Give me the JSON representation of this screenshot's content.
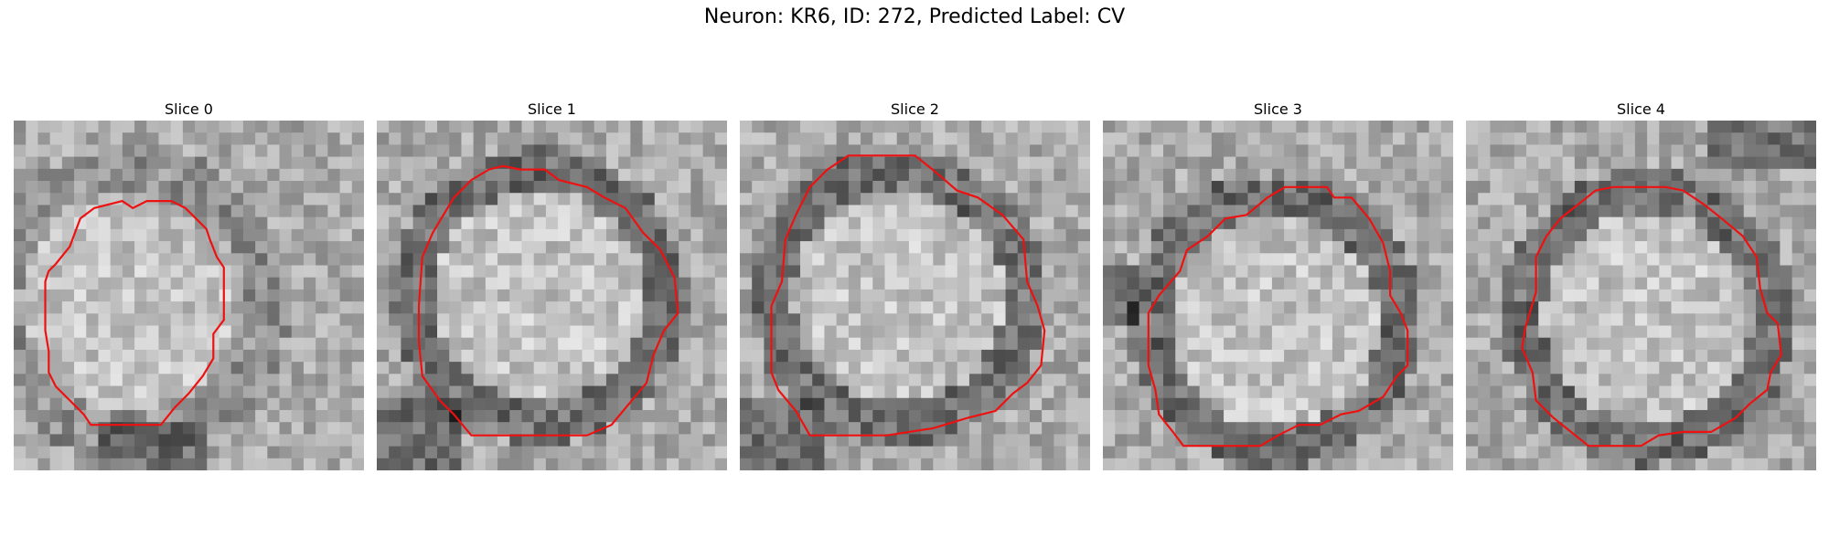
{
  "figure": {
    "title": "Neuron: KR6, ID: 272, Predicted Label: CV",
    "contour_color": "#ee1111",
    "colormap": "grayscale"
  },
  "slices": [
    {
      "title": "Slice 0",
      "seed": 11,
      "dark_ring": false,
      "dark_corner": "bottom-center",
      "contour": [
        [
          45,
          21
        ],
        [
          44,
          21
        ],
        [
          43,
          22
        ],
        [
          42,
          22
        ],
        [
          41,
          23
        ],
        [
          40,
          23
        ],
        [
          38,
          24
        ],
        [
          37,
          24
        ],
        [
          36,
          25
        ],
        [
          35,
          26
        ],
        [
          34,
          28
        ],
        [
          34,
          30
        ],
        [
          35,
          32
        ],
        [
          36,
          34
        ],
        [
          36,
          36
        ],
        [
          35,
          38
        ],
        [
          34,
          40
        ],
        [
          34,
          42
        ],
        [
          33,
          44
        ],
        [
          33,
          46
        ],
        [
          32,
          47
        ],
        [
          31,
          48
        ],
        [
          30,
          49
        ],
        [
          29,
          50
        ],
        [
          28,
          51
        ],
        [
          26,
          51
        ],
        [
          24,
          51
        ],
        [
          22,
          51
        ],
        [
          20,
          51
        ],
        [
          18,
          51
        ],
        [
          17,
          50
        ],
        [
          16,
          49
        ],
        [
          15,
          48
        ],
        [
          14,
          47
        ],
        [
          13,
          46
        ],
        [
          13,
          44
        ],
        [
          12,
          43
        ],
        [
          12,
          41
        ],
        [
          11,
          40
        ],
        [
          11,
          38
        ],
        [
          11,
          36
        ],
        [
          11,
          34
        ],
        [
          11,
          32
        ],
        [
          11,
          30
        ],
        [
          11,
          28
        ],
        [
          12,
          27
        ],
        [
          13,
          26
        ],
        [
          14,
          25
        ],
        [
          15,
          24
        ],
        [
          16,
          23
        ],
        [
          17,
          22
        ],
        [
          18,
          22
        ],
        [
          19,
          21
        ],
        [
          20,
          20
        ],
        [
          22,
          20
        ],
        [
          24,
          20
        ],
        [
          26,
          20
        ],
        [
          28,
          20
        ],
        [
          30,
          20
        ],
        [
          32,
          19
        ],
        [
          33,
          19
        ],
        [
          34,
          19
        ],
        [
          35,
          19
        ],
        [
          36,
          20
        ],
        [
          38,
          20
        ],
        [
          40,
          20
        ],
        [
          42,
          20
        ],
        [
          44,
          20
        ],
        [
          45,
          21
        ]
      ],
      "contour_norm": [
        [
          0.12,
          0.41
        ],
        [
          0.16,
          0.36
        ],
        [
          0.19,
          0.28
        ],
        [
          0.23,
          0.25
        ],
        [
          0.27,
          0.24
        ],
        [
          0.31,
          0.23
        ],
        [
          0.34,
          0.25
        ],
        [
          0.38,
          0.23
        ],
        [
          0.45,
          0.23
        ],
        [
          0.49,
          0.25
        ],
        [
          0.52,
          0.28
        ],
        [
          0.55,
          0.31
        ],
        [
          0.56,
          0.34
        ],
        [
          0.58,
          0.39
        ],
        [
          0.6,
          0.42
        ],
        [
          0.6,
          0.5
        ],
        [
          0.6,
          0.57
        ],
        [
          0.57,
          0.61
        ],
        [
          0.57,
          0.68
        ],
        [
          0.54,
          0.73
        ],
        [
          0.5,
          0.78
        ],
        [
          0.46,
          0.82
        ],
        [
          0.42,
          0.87
        ],
        [
          0.35,
          0.87
        ],
        [
          0.28,
          0.87
        ],
        [
          0.22,
          0.87
        ],
        [
          0.2,
          0.84
        ],
        [
          0.16,
          0.8
        ],
        [
          0.12,
          0.76
        ],
        [
          0.1,
          0.72
        ],
        [
          0.1,
          0.66
        ],
        [
          0.09,
          0.6
        ],
        [
          0.09,
          0.52
        ],
        [
          0.09,
          0.46
        ],
        [
          0.1,
          0.43
        ],
        [
          0.12,
          0.41
        ]
      ]
    },
    {
      "title": "Slice 1",
      "seed": 23,
      "dark_ring": true,
      "dark_corner": "bottom-left",
      "contour_norm": [
        [
          0.13,
          0.39
        ],
        [
          0.16,
          0.32
        ],
        [
          0.19,
          0.27
        ],
        [
          0.22,
          0.22
        ],
        [
          0.27,
          0.17
        ],
        [
          0.32,
          0.14
        ],
        [
          0.36,
          0.13
        ],
        [
          0.41,
          0.14
        ],
        [
          0.48,
          0.14
        ],
        [
          0.52,
          0.17
        ],
        [
          0.6,
          0.19
        ],
        [
          0.65,
          0.22
        ],
        [
          0.71,
          0.25
        ],
        [
          0.76,
          0.32
        ],
        [
          0.81,
          0.37
        ],
        [
          0.85,
          0.45
        ],
        [
          0.86,
          0.55
        ],
        [
          0.82,
          0.6
        ],
        [
          0.79,
          0.67
        ],
        [
          0.77,
          0.75
        ],
        [
          0.72,
          0.81
        ],
        [
          0.67,
          0.87
        ],
        [
          0.6,
          0.9
        ],
        [
          0.55,
          0.9
        ],
        [
          0.46,
          0.9
        ],
        [
          0.39,
          0.9
        ],
        [
          0.27,
          0.9
        ],
        [
          0.22,
          0.84
        ],
        [
          0.18,
          0.8
        ],
        [
          0.13,
          0.73
        ],
        [
          0.12,
          0.63
        ],
        [
          0.12,
          0.53
        ],
        [
          0.13,
          0.39
        ]
      ]
    },
    {
      "title": "Slice 2",
      "seed": 37,
      "dark_ring": true,
      "dark_corner": "bottom-left",
      "contour_norm": [
        [
          0.13,
          0.34
        ],
        [
          0.16,
          0.27
        ],
        [
          0.2,
          0.19
        ],
        [
          0.25,
          0.14
        ],
        [
          0.31,
          0.1
        ],
        [
          0.4,
          0.1
        ],
        [
          0.5,
          0.1
        ],
        [
          0.55,
          0.14
        ],
        [
          0.62,
          0.2
        ],
        [
          0.68,
          0.22
        ],
        [
          0.75,
          0.27
        ],
        [
          0.81,
          0.34
        ],
        [
          0.82,
          0.46
        ],
        [
          0.85,
          0.53
        ],
        [
          0.87,
          0.6
        ],
        [
          0.86,
          0.7
        ],
        [
          0.82,
          0.75
        ],
        [
          0.78,
          0.78
        ],
        [
          0.73,
          0.83
        ],
        [
          0.65,
          0.85
        ],
        [
          0.55,
          0.88
        ],
        [
          0.42,
          0.9
        ],
        [
          0.3,
          0.9
        ],
        [
          0.2,
          0.9
        ],
        [
          0.16,
          0.83
        ],
        [
          0.11,
          0.77
        ],
        [
          0.09,
          0.72
        ],
        [
          0.09,
          0.6
        ],
        [
          0.09,
          0.53
        ],
        [
          0.12,
          0.46
        ],
        [
          0.13,
          0.34
        ]
      ]
    },
    {
      "title": "Slice 3",
      "seed": 41,
      "dark_ring": true,
      "dark_corner": "left",
      "contour_norm": [
        [
          0.13,
          0.55
        ],
        [
          0.16,
          0.5
        ],
        [
          0.22,
          0.43
        ],
        [
          0.24,
          0.37
        ],
        [
          0.3,
          0.33
        ],
        [
          0.35,
          0.28
        ],
        [
          0.41,
          0.27
        ],
        [
          0.47,
          0.22
        ],
        [
          0.52,
          0.19
        ],
        [
          0.6,
          0.19
        ],
        [
          0.64,
          0.19
        ],
        [
          0.66,
          0.22
        ],
        [
          0.71,
          0.22
        ],
        [
          0.76,
          0.28
        ],
        [
          0.8,
          0.35
        ],
        [
          0.82,
          0.43
        ],
        [
          0.82,
          0.5
        ],
        [
          0.85,
          0.55
        ],
        [
          0.87,
          0.6
        ],
        [
          0.87,
          0.7
        ],
        [
          0.84,
          0.73
        ],
        [
          0.8,
          0.79
        ],
        [
          0.73,
          0.83
        ],
        [
          0.68,
          0.84
        ],
        [
          0.62,
          0.87
        ],
        [
          0.56,
          0.87
        ],
        [
          0.5,
          0.9
        ],
        [
          0.45,
          0.93
        ],
        [
          0.38,
          0.93
        ],
        [
          0.32,
          0.93
        ],
        [
          0.23,
          0.93
        ],
        [
          0.2,
          0.89
        ],
        [
          0.16,
          0.84
        ],
        [
          0.15,
          0.77
        ],
        [
          0.13,
          0.7
        ],
        [
          0.13,
          0.6
        ],
        [
          0.13,
          0.55
        ]
      ]
    },
    {
      "title": "Slice 4",
      "seed": 53,
      "dark_ring": true,
      "dark_corner": "top-right",
      "contour_norm": [
        [
          0.2,
          0.39
        ],
        [
          0.23,
          0.33
        ],
        [
          0.27,
          0.28
        ],
        [
          0.32,
          0.24
        ],
        [
          0.37,
          0.2
        ],
        [
          0.42,
          0.19
        ],
        [
          0.5,
          0.19
        ],
        [
          0.57,
          0.19
        ],
        [
          0.62,
          0.2
        ],
        [
          0.68,
          0.24
        ],
        [
          0.73,
          0.28
        ],
        [
          0.79,
          0.33
        ],
        [
          0.83,
          0.39
        ],
        [
          0.84,
          0.48
        ],
        [
          0.86,
          0.55
        ],
        [
          0.89,
          0.58
        ],
        [
          0.9,
          0.67
        ],
        [
          0.87,
          0.72
        ],
        [
          0.86,
          0.77
        ],
        [
          0.81,
          0.81
        ],
        [
          0.77,
          0.85
        ],
        [
          0.7,
          0.89
        ],
        [
          0.62,
          0.89
        ],
        [
          0.55,
          0.9
        ],
        [
          0.5,
          0.93
        ],
        [
          0.4,
          0.93
        ],
        [
          0.35,
          0.93
        ],
        [
          0.3,
          0.89
        ],
        [
          0.25,
          0.85
        ],
        [
          0.2,
          0.8
        ],
        [
          0.19,
          0.72
        ],
        [
          0.16,
          0.65
        ],
        [
          0.17,
          0.59
        ],
        [
          0.2,
          0.49
        ],
        [
          0.2,
          0.39
        ]
      ]
    }
  ]
}
